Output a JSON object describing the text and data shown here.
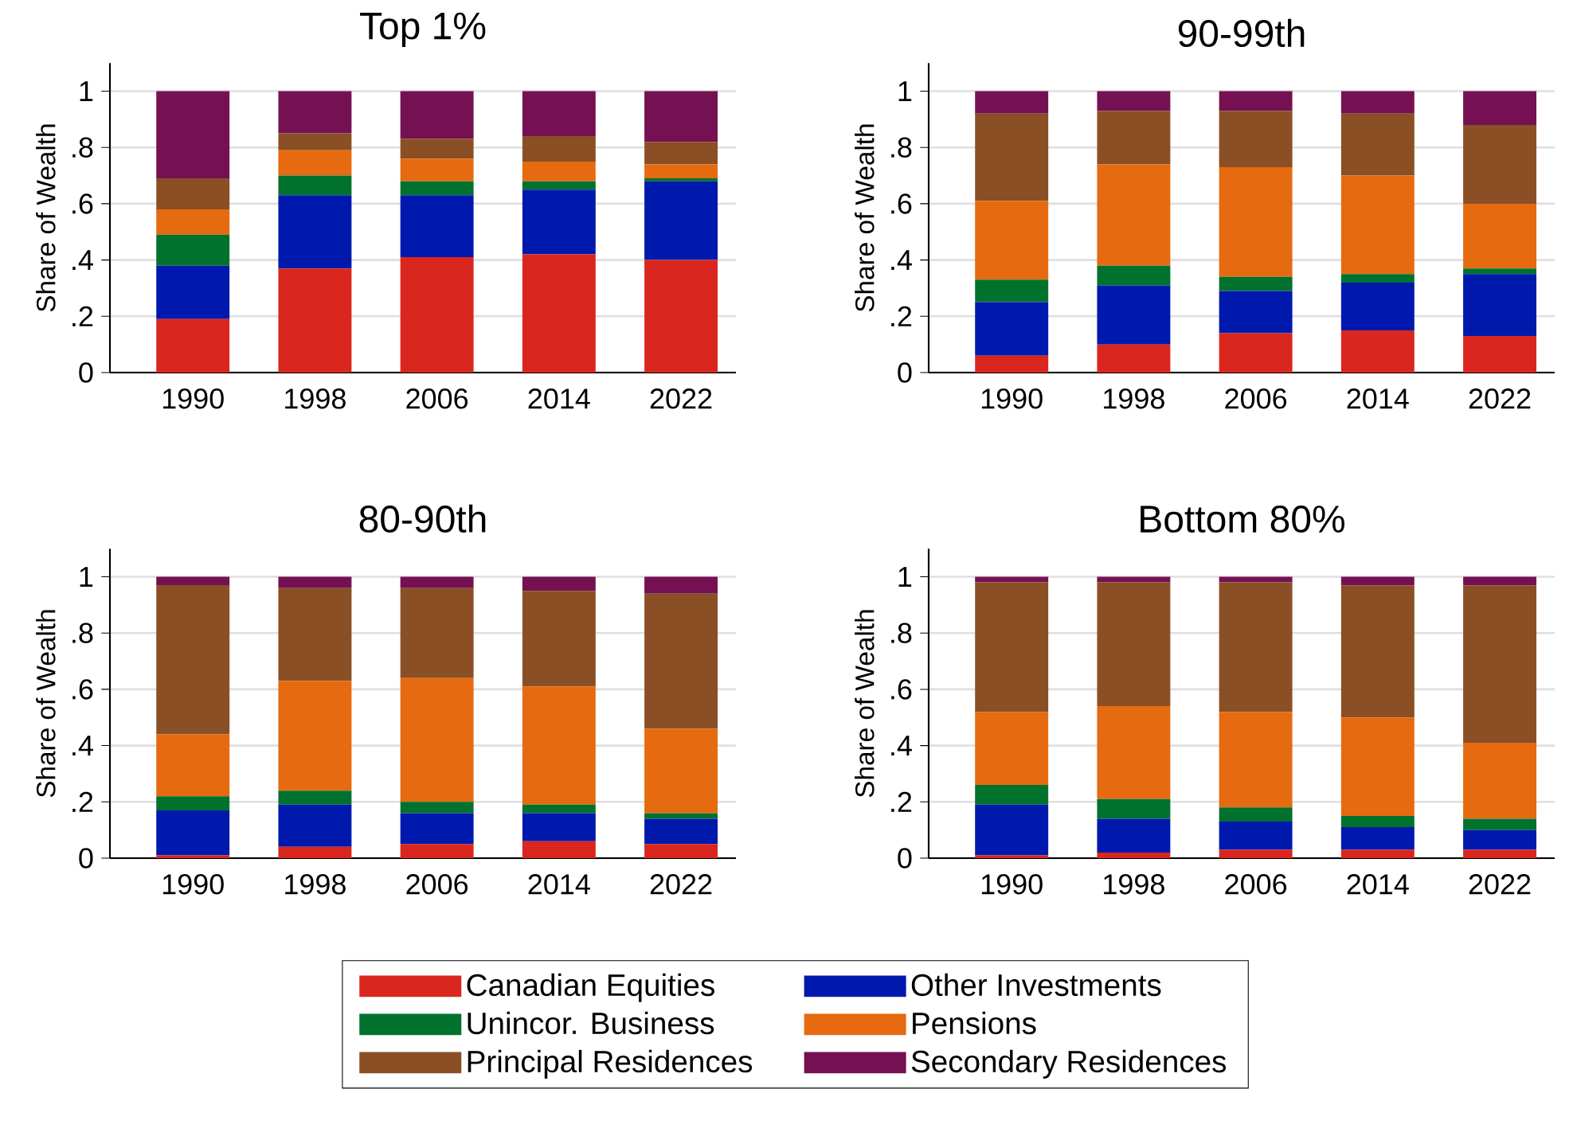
{
  "chart_data": [
    {
      "type": "bar",
      "title": "Top 1%",
      "ylabel": "Share of Wealth",
      "categories": [
        "1990",
        "1998",
        "2006",
        "2014",
        "2022"
      ],
      "stacked": true,
      "grid": "y",
      "ylim": [
        0,
        1.1
      ],
      "yticks": [
        0,
        {
          "value": 0.2,
          "label": ".2"
        },
        {
          "value": 0.4,
          "label": ".4"
        },
        {
          "value": 0.6,
          "label": ".6"
        },
        {
          "value": 0.8,
          "label": ".8"
        },
        1
      ],
      "series": [
        {
          "color": "#d9261f",
          "values": [
            0.19,
            0.37,
            0.41,
            0.42,
            0.4
          ]
        },
        {
          "color": "#0019ad",
          "values": [
            0.19,
            0.26,
            0.22,
            0.23,
            0.28
          ]
        },
        {
          "color": "#00722e",
          "values": [
            0.11,
            0.07,
            0.05,
            0.03,
            0.01
          ]
        },
        {
          "color": "#e66a10",
          "values": [
            0.09,
            0.09,
            0.08,
            0.07,
            0.05
          ]
        },
        {
          "color": "#8a4f25",
          "values": [
            0.11,
            0.06,
            0.07,
            0.09,
            0.08
          ]
        },
        {
          "color": "#751153",
          "values": [
            0.31,
            0.15,
            0.17,
            0.16,
            0.18
          ]
        }
      ]
    },
    {
      "type": "bar",
      "title": "90-99th",
      "ylabel": "Share of Wealth",
      "categories": [
        "1990",
        "1998",
        "2006",
        "2014",
        "2022"
      ],
      "stacked": true,
      "grid": "y",
      "ylim": [
        0,
        1.1
      ],
      "yticks": [
        0,
        {
          "value": 0.2,
          "label": ".2"
        },
        {
          "value": 0.4,
          "label": ".4"
        },
        {
          "value": 0.6,
          "label": ".6"
        },
        {
          "value": 0.8,
          "label": ".8"
        },
        1
      ],
      "series": [
        {
          "color": "#d9261f",
          "values": [
            0.06,
            0.1,
            0.14,
            0.15,
            0.13
          ]
        },
        {
          "color": "#0019ad",
          "values": [
            0.19,
            0.21,
            0.15,
            0.17,
            0.22
          ]
        },
        {
          "color": "#00722e",
          "values": [
            0.08,
            0.07,
            0.05,
            0.03,
            0.02
          ]
        },
        {
          "color": "#e66a10",
          "values": [
            0.28,
            0.36,
            0.39,
            0.35,
            0.23
          ]
        },
        {
          "color": "#8a4f25",
          "values": [
            0.31,
            0.19,
            0.2,
            0.22,
            0.28
          ]
        },
        {
          "color": "#751153",
          "values": [
            0.08,
            0.07,
            0.07,
            0.08,
            0.12
          ]
        }
      ]
    },
    {
      "type": "bar",
      "title": "80-90th",
      "ylabel": "Share of Wealth",
      "categories": [
        "1990",
        "1998",
        "2006",
        "2014",
        "2022"
      ],
      "stacked": true,
      "grid": "y",
      "ylim": [
        0,
        1.1
      ],
      "yticks": [
        0,
        {
          "value": 0.2,
          "label": ".2"
        },
        {
          "value": 0.4,
          "label": ".4"
        },
        {
          "value": 0.6,
          "label": ".6"
        },
        {
          "value": 0.8,
          "label": ".8"
        },
        1
      ],
      "series": [
        {
          "color": "#d9261f",
          "values": [
            0.01,
            0.04,
            0.05,
            0.06,
            0.05
          ]
        },
        {
          "color": "#0019ad",
          "values": [
            0.16,
            0.15,
            0.11,
            0.1,
            0.09
          ]
        },
        {
          "color": "#00722e",
          "values": [
            0.05,
            0.05,
            0.04,
            0.03,
            0.02
          ]
        },
        {
          "color": "#e66a10",
          "values": [
            0.22,
            0.39,
            0.44,
            0.42,
            0.3
          ]
        },
        {
          "color": "#8a4f25",
          "values": [
            0.53,
            0.33,
            0.32,
            0.34,
            0.48
          ]
        },
        {
          "color": "#751153",
          "values": [
            0.03,
            0.04,
            0.04,
            0.05,
            0.06
          ]
        }
      ]
    },
    {
      "type": "bar",
      "title": "Bottom 80%",
      "ylabel": "Share of Wealth",
      "categories": [
        "1990",
        "1998",
        "2006",
        "2014",
        "2022"
      ],
      "stacked": true,
      "grid": "y",
      "ylim": [
        0,
        1.1
      ],
      "yticks": [
        0,
        {
          "value": 0.2,
          "label": ".2"
        },
        {
          "value": 0.4,
          "label": ".4"
        },
        {
          "value": 0.6,
          "label": ".6"
        },
        {
          "value": 0.8,
          "label": ".8"
        },
        1
      ],
      "legend": "bottom",
      "series": [
        {
          "name": "Canadian Equities",
          "color": "#d9261f",
          "values": [
            0.01,
            0.02,
            0.03,
            0.03,
            0.03
          ]
        },
        {
          "name": "Other Investments",
          "color": "#0019ad",
          "values": [
            0.18,
            0.12,
            0.1,
            0.08,
            0.07
          ]
        },
        {
          "name": "Unincor. Business",
          "color": "#00722e",
          "values": [
            0.07,
            0.07,
            0.05,
            0.04,
            0.04
          ]
        },
        {
          "name": "Pensions",
          "color": "#e66a10",
          "values": [
            0.26,
            0.33,
            0.34,
            0.35,
            0.27
          ]
        },
        {
          "name": "Principal Residences",
          "color": "#8a4f25",
          "values": [
            0.46,
            0.44,
            0.46,
            0.47,
            0.56
          ]
        },
        {
          "name": "Secondary Residences",
          "color": "#751153",
          "values": [
            0.02,
            0.02,
            0.02,
            0.03,
            0.03
          ]
        }
      ]
    }
  ]
}
